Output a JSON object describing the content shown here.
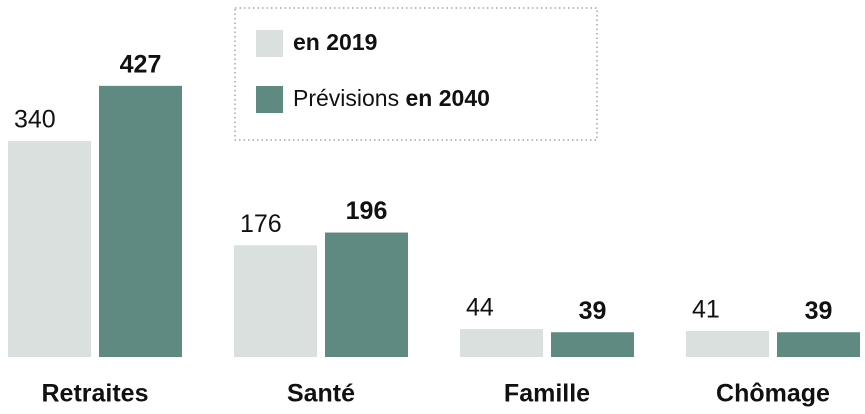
{
  "chart_data": {
    "type": "bar",
    "categories": [
      "Retraites",
      "Santé",
      "Famille",
      "Chômage"
    ],
    "series": [
      {
        "name": "en 2019",
        "color": "#d9e0de",
        "values": [
          340,
          176,
          44,
          41
        ]
      },
      {
        "name": "Prévisions en 2040",
        "color": "#5e8a82",
        "values": [
          427,
          196,
          39,
          39
        ]
      }
    ],
    "ylim": [
      0,
      450
    ]
  }
}
